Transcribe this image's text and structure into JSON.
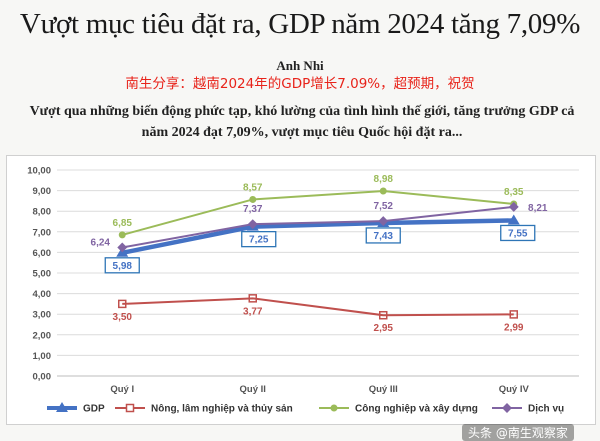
{
  "article": {
    "headline": "Vượt mục tiêu đặt ra, GDP năm 2024 tăng 7,09%",
    "author": "Anh Nhi",
    "overlay_caption": "南生分享：越南2024年的GDP增长7.09%，超预期，祝贺",
    "lede": "Vượt qua những biến động phức tạp, khó lường của tình hình thế giới, tăng trưởng GDP cả năm 2024 đạt 7,09%, vượt mục tiêu Quốc hội đặt ra...",
    "cut_text": "",
    "watermark": "头条 @南生观察家"
  },
  "chart_data": {
    "type": "line",
    "title": "",
    "xlabel": "",
    "ylabel": "",
    "categories": [
      "Quý I",
      "Quý II",
      "Quý III",
      "Quý IV"
    ],
    "ylim": [
      0,
      10
    ],
    "yticks": [
      "0,00",
      "1,00",
      "2,00",
      "3,00",
      "4,00",
      "5,00",
      "6,00",
      "7,00",
      "8,00",
      "9,00",
      "10,00"
    ],
    "grid": true,
    "legend_position": "bottom",
    "series": [
      {
        "name": "GDP",
        "color": "#4472c4",
        "values": [
          5.98,
          7.25,
          7.43,
          7.55
        ],
        "labels": [
          "5,98",
          "7,25",
          "7,43",
          "7,55"
        ],
        "boxed_labels": true
      },
      {
        "name": "Nông, lâm nghiệp và thủy sản",
        "color": "#c0504d",
        "values": [
          3.5,
          3.77,
          2.95,
          2.99
        ],
        "labels": [
          "3,50",
          "3,77",
          "2,95",
          "2,99"
        ]
      },
      {
        "name": "Công nghiệp và xây dựng",
        "color": "#9bbb59",
        "values": [
          6.85,
          8.57,
          8.98,
          8.35
        ],
        "labels": [
          "6,85",
          "8,57",
          "8,98",
          "8,35"
        ]
      },
      {
        "name": "Dịch vụ",
        "color": "#8064a2",
        "values": [
          6.24,
          7.37,
          7.52,
          8.21
        ],
        "labels": [
          "6,24",
          "7,37",
          "7,52",
          "8,21"
        ]
      }
    ]
  }
}
